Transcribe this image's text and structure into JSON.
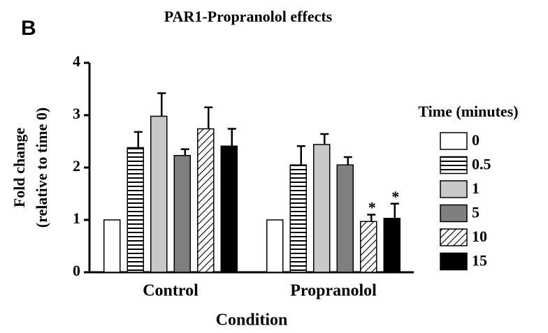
{
  "panel_label": "B",
  "chart_data": {
    "type": "bar",
    "title": "PAR1-Propranolol effects",
    "x_label": "Condition",
    "y_label": [
      "Fold change",
      "(relative to time 0)"
    ],
    "categories": [
      "Control",
      "Propranolol"
    ],
    "ylim": [
      0,
      4
    ],
    "yticks": [
      0,
      1,
      2,
      3,
      4
    ],
    "legend_title": "Time (minutes)",
    "legend": "right",
    "series": [
      {
        "name": "0",
        "color": "#ffffff",
        "pattern": "none",
        "values": [
          1,
          1
        ],
        "errors": [
          null,
          null
        ]
      },
      {
        "name": "0.5",
        "color": "#ffffff",
        "pattern": "horizontal",
        "values": [
          2.38,
          2.05
        ],
        "errors": [
          0.3,
          0.36
        ]
      },
      {
        "name": "1",
        "color": "#c8c8c8",
        "pattern": "none",
        "values": [
          2.98,
          2.44
        ],
        "errors": [
          0.44,
          0.2
        ]
      },
      {
        "name": "5",
        "color": "#7f7f7f",
        "pattern": "none",
        "values": [
          2.23,
          2.05
        ],
        "errors": [
          0.12,
          0.15
        ]
      },
      {
        "name": "10",
        "color": "#ffffff",
        "pattern": "diagonal",
        "values": [
          2.74,
          0.97
        ],
        "errors": [
          0.41,
          0.13
        ],
        "annotations": [
          null,
          "*"
        ]
      },
      {
        "name": "15",
        "color": "#000000",
        "pattern": "none",
        "values": [
          2.41,
          1.03
        ],
        "errors": [
          0.33,
          0.28
        ],
        "annotations": [
          null,
          "*"
        ]
      }
    ]
  }
}
